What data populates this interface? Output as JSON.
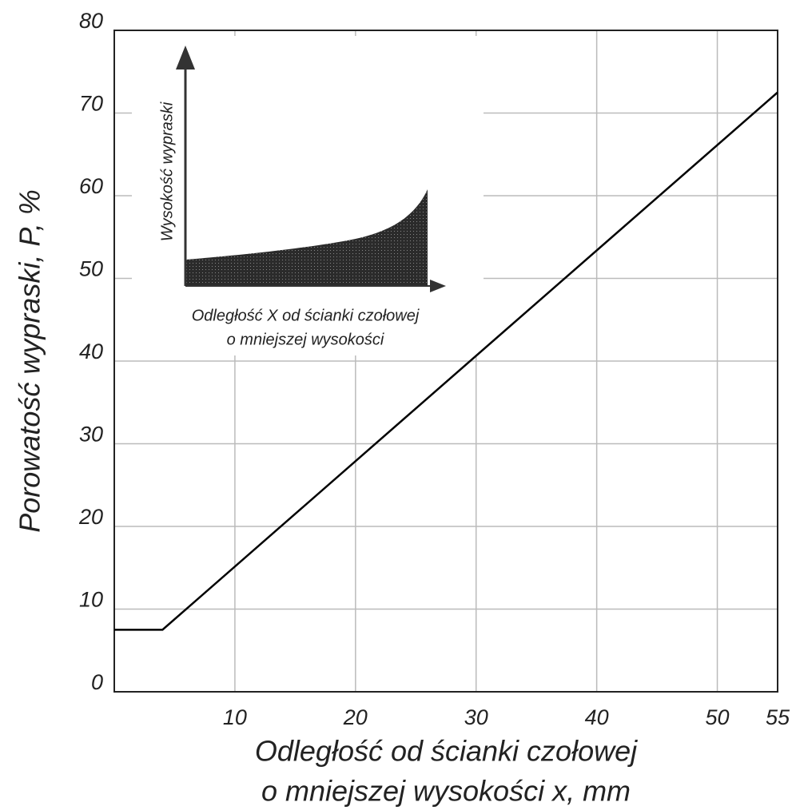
{
  "chart_data": {
    "type": "line",
    "x_label": [
      "Odległość od ścianki czołowej",
      "o mniejszej wysokości x, mm"
    ],
    "y_label": "Porowatość wypraski, P, %",
    "x": [
      0,
      4,
      55
    ],
    "series": [
      {
        "color": "#000000",
        "values": [
          7.5,
          7.5,
          72.5
        ]
      }
    ],
    "xlim": [
      0,
      55
    ],
    "xticks": [
      10,
      20,
      30,
      40,
      50,
      55
    ],
    "ylim": [
      0,
      80
    ],
    "yticks": [
      0,
      10,
      20,
      30,
      40,
      50,
      60,
      70,
      80
    ],
    "grid": true,
    "inset": {
      "y_label": "Wysokość wypraski",
      "x_label": [
        "Odległość X od ścianki czołowej",
        "o mniejszej wysokości"
      ]
    }
  }
}
